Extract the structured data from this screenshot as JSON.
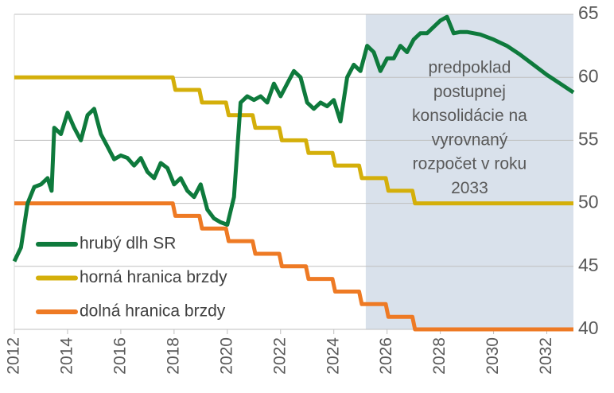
{
  "chart_data": {
    "type": "line",
    "xlim": [
      2012,
      2033
    ],
    "xticks": [
      2012,
      2014,
      2016,
      2018,
      2020,
      2022,
      2024,
      2026,
      2028,
      2030,
      2032
    ],
    "ylim": [
      40,
      65
    ],
    "yticks": [
      40,
      45,
      50,
      55,
      60,
      65
    ],
    "grid": true,
    "legend": "lower left",
    "shaded_region": {
      "x": [
        2025.2,
        2033
      ],
      "color": "#d9e1eb"
    },
    "annotation": [
      "predpoklad",
      "postupnej",
      "konsolidácie na",
      "vyrovnaný",
      "rozpočet v roku",
      "2033"
    ],
    "series": [
      {
        "name": "hrubý dlh SR",
        "color": "#0e7a3c",
        "x": [
          2012.0,
          2012.25,
          2012.5,
          2012.75,
          2013.0,
          2013.25,
          2013.4,
          2013.5,
          2013.75,
          2014.0,
          2014.25,
          2014.5,
          2014.75,
          2015.0,
          2015.25,
          2015.5,
          2015.75,
          2016.0,
          2016.25,
          2016.5,
          2016.75,
          2017.0,
          2017.25,
          2017.5,
          2017.75,
          2018.0,
          2018.25,
          2018.5,
          2018.75,
          2019.0,
          2019.25,
          2019.5,
          2019.75,
          2020.0,
          2020.25,
          2020.5,
          2020.75,
          2021.0,
          2021.25,
          2021.5,
          2021.75,
          2022.0,
          2022.25,
          2022.5,
          2022.75,
          2023.0,
          2023.25,
          2023.5,
          2023.75,
          2024.0,
          2024.25,
          2024.5,
          2024.75,
          2025.0,
          2025.25,
          2025.5,
          2025.75,
          2026.0,
          2026.25,
          2026.5,
          2026.75,
          2027.0,
          2027.25,
          2027.5,
          2027.75,
          2028.0,
          2028.25,
          2028.5,
          2028.75,
          2029.0,
          2029.5,
          2030.0,
          2030.5,
          2031.0,
          2031.5,
          2032.0,
          2032.5,
          2033.0
        ],
        "values": [
          45.4,
          46.5,
          50,
          51.3,
          51.5,
          52,
          51,
          56,
          55.5,
          57.2,
          56,
          55,
          57,
          57.5,
          55.5,
          54.5,
          53.5,
          53.8,
          53.6,
          53,
          53.6,
          52.5,
          52,
          53.2,
          52.8,
          51.5,
          52,
          51,
          50.5,
          51.5,
          49.5,
          48.8,
          48.5,
          48.3,
          50.5,
          58,
          58.5,
          58.2,
          58.5,
          58,
          59.5,
          58.5,
          59.5,
          60.5,
          60,
          58,
          57.5,
          58,
          57.7,
          58.2,
          56.5,
          60,
          61,
          60.5,
          62.5,
          62,
          60.5,
          61.5,
          61.5,
          62.5,
          62,
          63,
          63.5,
          63.5,
          64,
          64.5,
          64.8,
          63.5,
          63.6,
          63.6,
          63.4,
          63,
          62.5,
          61.8,
          61,
          60.2,
          59.5,
          58.8
        ]
      },
      {
        "name": "horná hranica brzdy",
        "color": "#d4af0a",
        "x": [
          2012,
          2017.95,
          2018.05,
          2018.95,
          2019.05,
          2019.95,
          2020.05,
          2020.95,
          2021.05,
          2021.95,
          2022.05,
          2022.95,
          2023.05,
          2023.95,
          2024.05,
          2024.95,
          2025.05,
          2025.95,
          2026.05,
          2026.95,
          2027.05,
          2033
        ],
        "values": [
          60,
          60,
          59,
          59,
          58,
          58,
          57,
          57,
          56,
          56,
          55,
          55,
          54,
          54,
          53,
          53,
          52,
          52,
          51,
          51,
          50,
          50
        ]
      },
      {
        "name": "dolná hranica brzdy",
        "color": "#ee7a24",
        "x": [
          2012,
          2017.95,
          2018.05,
          2018.95,
          2019.05,
          2019.95,
          2020.05,
          2020.95,
          2021.05,
          2021.95,
          2022.05,
          2022.95,
          2023.05,
          2023.95,
          2024.05,
          2024.95,
          2025.05,
          2025.95,
          2026.05,
          2026.95,
          2027.05,
          2033
        ],
        "values": [
          50,
          50,
          49,
          49,
          48,
          48,
          47,
          47,
          46,
          46,
          45,
          45,
          44,
          44,
          43,
          43,
          42,
          42,
          41,
          41,
          40,
          40
        ]
      }
    ]
  }
}
